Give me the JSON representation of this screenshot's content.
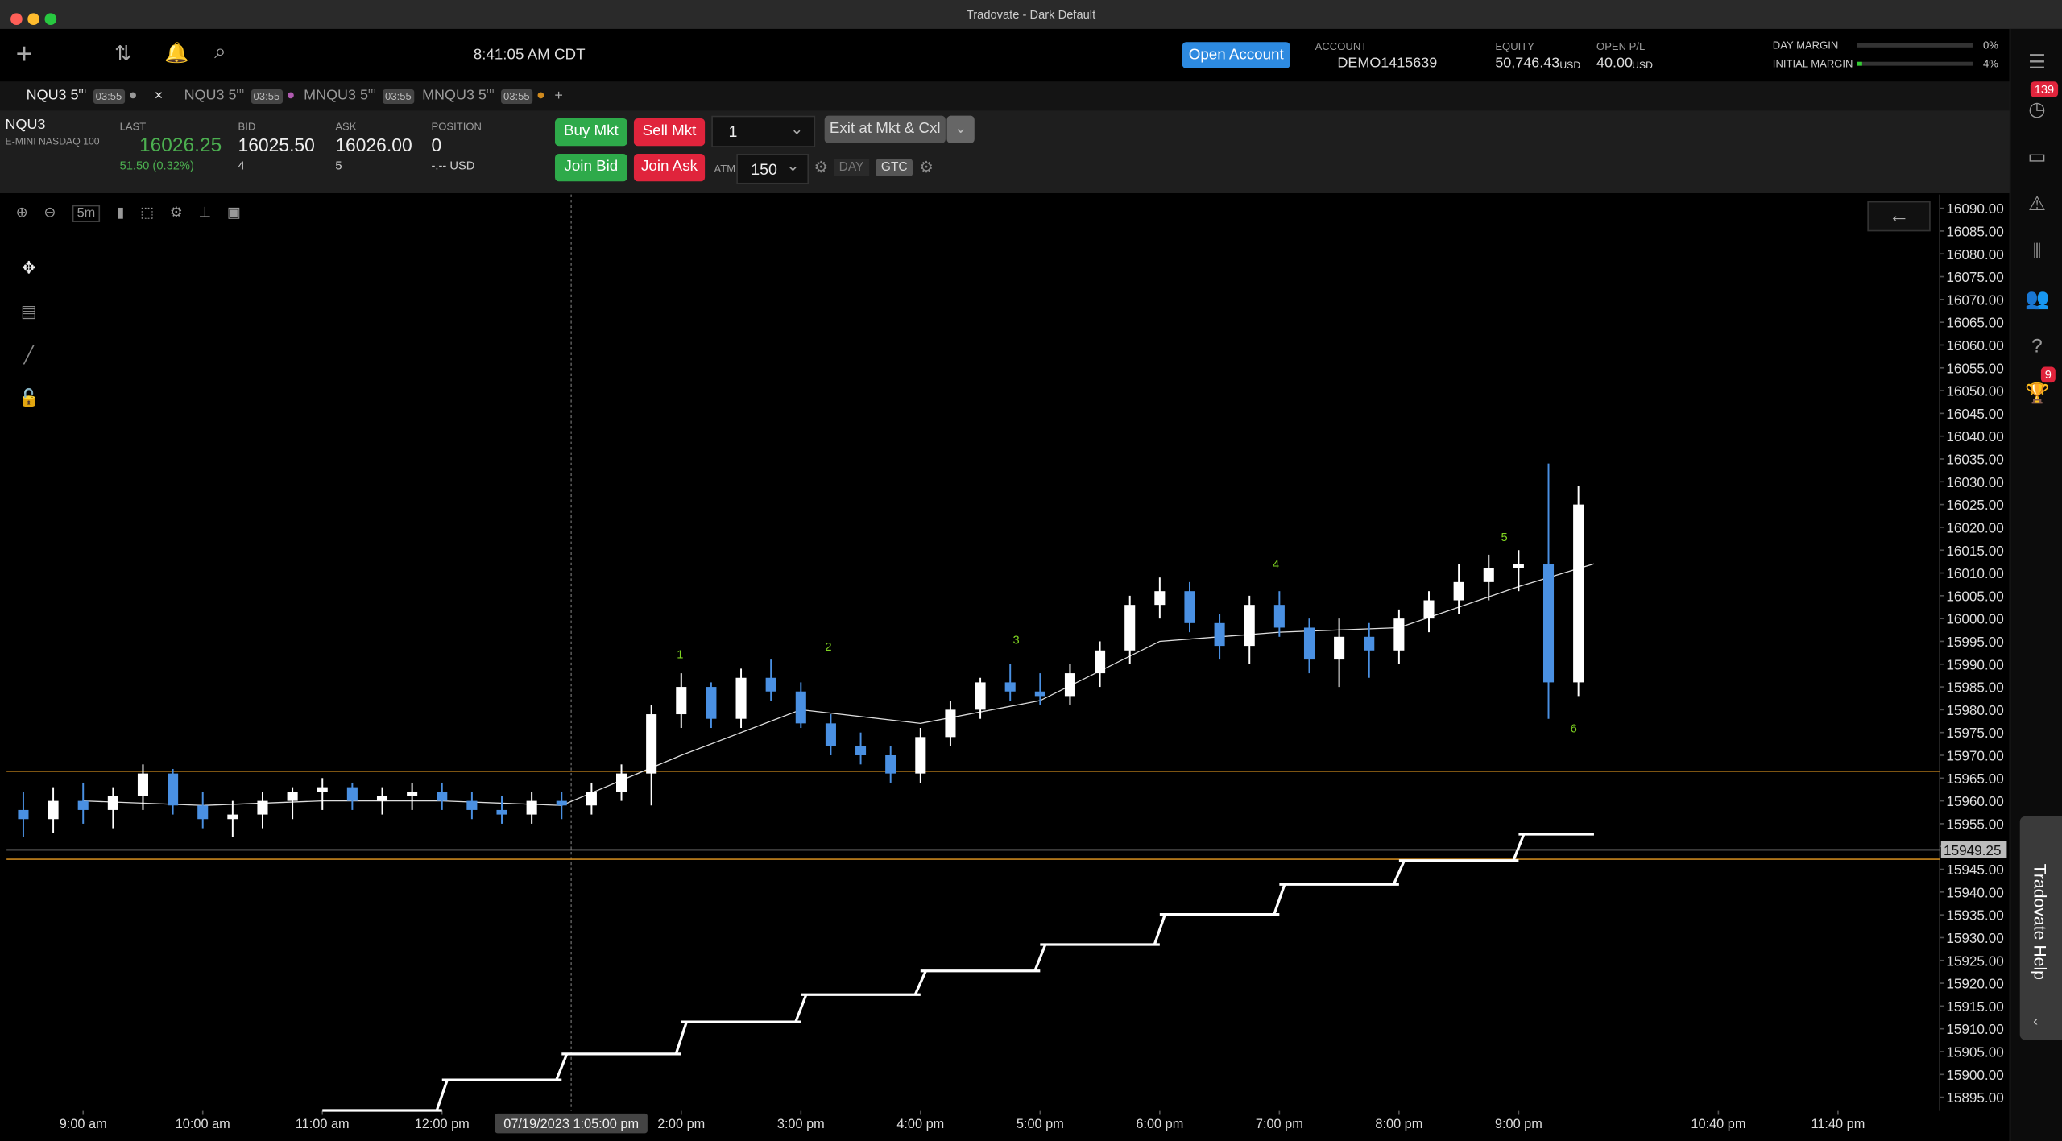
{
  "window": {
    "title": "Tradovate - Dark Default"
  },
  "toolbar": {
    "clock": "8:41:05 AM CDT",
    "open_account": "Open Account",
    "account_label": "ACCOUNT",
    "account": "DEMO1415639",
    "equity_label": "EQUITY",
    "equity": "50,746.43",
    "equity_unit": "USD",
    "pl_label": "OPEN P/L",
    "pl": "40.00",
    "pl_unit": "USD",
    "day_margin_label": "DAY MARGIN",
    "day_margin": "0%",
    "initial_margin_label": "INITIAL MARGIN",
    "initial_margin": "4%"
  },
  "tabs": [
    {
      "name": "NQU3 5",
      "sup": "m",
      "timer": "03:55"
    },
    {
      "name": "NQU3 5",
      "sup": "m",
      "timer": "03:55"
    },
    {
      "name": "MNQU3 5",
      "sup": "m",
      "timer": "03:55"
    },
    {
      "name": "MNQU3 5",
      "sup": "m",
      "timer": "03:55"
    }
  ],
  "quote": {
    "symbol": "NQU3",
    "description": "E-MINI NASDAQ 100",
    "last_label": "LAST",
    "last": "16026.25",
    "change": "51.50 (0.32%)",
    "bid_label": "BID",
    "bid": "16025.50",
    "bid_size": "4",
    "ask_label": "ASK",
    "ask": "16026.00",
    "ask_size": "5",
    "position_label": "POSITION",
    "position": "0",
    "position_pl": "-.-- USD"
  },
  "order": {
    "buy": "Buy Mkt",
    "sell": "Sell Mkt",
    "qty": "1",
    "join_bid": "Join Bid",
    "join_ask": "Join Ask",
    "atm_label": "ATM",
    "atm": "150",
    "day": "DAY",
    "gtc": "GTC",
    "exit": "Exit at Mkt & Cxl"
  },
  "chart_toolbar": {
    "interval": "5m"
  },
  "sidebar": {
    "badge_top": "139",
    "badge_trophy": "9",
    "help": "Tradovate Help"
  },
  "chart": {
    "type": "candlestick",
    "ylim": [
      15892,
      16093
    ],
    "xlim": [
      8.36,
      24.52
    ],
    "up_color": "#ffffff",
    "down_color": "#4a90e2",
    "yticks": [
      {
        "value": 15895,
        "label": "15895.00"
      },
      {
        "value": 15900,
        "label": "15900.00"
      },
      {
        "value": 15905,
        "label": "15905.00"
      },
      {
        "value": 15910,
        "label": "15910.00"
      },
      {
        "value": 15915,
        "label": "15915.00"
      },
      {
        "value": 15920,
        "label": "15920.00"
      },
      {
        "value": 15925,
        "label": "15925.00"
      },
      {
        "value": 15930,
        "label": "15930.00"
      },
      {
        "value": 15935,
        "label": "15935.00"
      },
      {
        "value": 15940,
        "label": "15940.00"
      },
      {
        "value": 15945,
        "label": "15945.00"
      },
      {
        "value": 15950,
        "label": "15950.00"
      },
      {
        "value": 15955,
        "label": "15955.00"
      },
      {
        "value": 15960,
        "label": "15960.00"
      },
      {
        "value": 15965,
        "label": "15965.00"
      },
      {
        "value": 15970,
        "label": "15970.00"
      },
      {
        "value": 15975,
        "label": "15975.00"
      },
      {
        "value": 15980,
        "label": "15980.00"
      },
      {
        "value": 15985,
        "label": "15985.00"
      },
      {
        "value": 15990,
        "label": "15990.00"
      },
      {
        "value": 15995,
        "label": "15995.00"
      },
      {
        "value": 16000,
        "label": "16000.00"
      },
      {
        "value": 16005,
        "label": "16005.00"
      },
      {
        "value": 16010,
        "label": "16010.00"
      },
      {
        "value": 16015,
        "label": "16015.00"
      },
      {
        "value": 16020,
        "label": "16020.00"
      },
      {
        "value": 16025,
        "label": "16025.00"
      },
      {
        "value": 16030,
        "label": "16030.00"
      },
      {
        "value": 16035,
        "label": "16035.00"
      },
      {
        "value": 16040,
        "label": "16040.00"
      },
      {
        "value": 16045,
        "label": "16045.00"
      },
      {
        "value": 16050,
        "label": "16050.00"
      },
      {
        "value": 16055,
        "label": "16055.00"
      },
      {
        "value": 16060,
        "label": "16060.00"
      },
      {
        "value": 16065,
        "label": "16065.00"
      },
      {
        "value": 16070,
        "label": "16070.00"
      },
      {
        "value": 16075,
        "label": "16075.00"
      },
      {
        "value": 16080,
        "label": "16080.00"
      },
      {
        "value": 16085,
        "label": "16085.00"
      },
      {
        "value": 16090,
        "label": "16090.00"
      }
    ],
    "xticks": [
      {
        "value": 9,
        "label": "9:00 am"
      },
      {
        "value": 10,
        "label": "10:00 am"
      },
      {
        "value": 11,
        "label": "11:00 am"
      },
      {
        "value": 12,
        "label": "12:00 pm"
      },
      {
        "value": 14,
        "label": "2:00 pm"
      },
      {
        "value": 15,
        "label": "3:00 pm"
      },
      {
        "value": 16,
        "label": "4:00 pm"
      },
      {
        "value": 17,
        "label": "5:00 pm"
      },
      {
        "value": 18,
        "label": "6:00 pm"
      },
      {
        "value": 19,
        "label": "7:00 pm"
      },
      {
        "value": 20,
        "label": "8:00 pm"
      },
      {
        "value": 21,
        "label": "9:00 pm"
      },
      {
        "value": 22.67,
        "label": "10:40 pm"
      },
      {
        "value": 23.67,
        "label": "11:40 pm"
      }
    ],
    "crosshair": {
      "value": 13.08,
      "label": "07/19/2023 1:05:00 pm"
    },
    "candles": {
      "x": [
        8.5,
        8.75,
        9,
        9.25,
        9.5,
        9.75,
        10,
        10.25,
        10.5,
        10.75,
        11,
        11.25,
        11.5,
        11.75,
        12,
        12.25,
        12.5,
        12.75,
        13,
        13.25,
        13.5,
        13.75,
        14,
        14.25,
        14.5,
        14.75,
        15,
        15.25,
        15.5,
        15.75,
        16,
        16.25,
        16.5,
        16.75,
        17,
        17.25,
        17.5,
        17.75,
        18,
        18.25,
        18.5,
        18.75,
        19,
        19.25,
        19.5,
        19.75,
        20,
        20.25,
        20.5,
        20.75,
        21,
        21.25,
        21.5
      ],
      "open": [
        15958,
        15956,
        15960,
        15958,
        15961,
        15966,
        15959,
        15956,
        15957,
        15960,
        15962,
        15963,
        15960,
        15961,
        15962,
        15960,
        15958,
        15957,
        15960,
        15959,
        15962,
        15966,
        15979,
        15985,
        15978,
        15987,
        15984,
        15977,
        15972,
        15970,
        15966,
        15974,
        15980,
        15986,
        15984,
        15983,
        15988,
        15993,
        16003,
        16006,
        15999,
        15994,
        16003,
        15998,
        15991,
        15996,
        15993,
        16000,
        16004,
        16008,
        16011,
        16012,
        15986
      ],
      "high": [
        15962,
        15963,
        15964,
        15963,
        15968,
        15967,
        15962,
        15960,
        15962,
        15963,
        15965,
        15964,
        15963,
        15964,
        15964,
        15962,
        15961,
        15962,
        15962,
        15964,
        15968,
        15981,
        15988,
        15986,
        15989,
        15991,
        15986,
        15979,
        15975,
        15972,
        15976,
        15982,
        15987,
        15990,
        15988,
        15990,
        15995,
        16005,
        16009,
        16008,
        16001,
        16005,
        16006,
        16000,
        16000,
        15999,
        16002,
        16006,
        16012,
        16014,
        16015,
        16034,
        16029
      ],
      "low": [
        15952,
        15953,
        15955,
        15954,
        15958,
        15957,
        15954,
        15952,
        15954,
        15956,
        15958,
        15958,
        15957,
        15958,
        15958,
        15956,
        15955,
        15955,
        15956,
        15957,
        15960,
        15959,
        15976,
        15976,
        15976,
        15982,
        15976,
        15970,
        15968,
        15964,
        15964,
        15972,
        15978,
        15982,
        15981,
        15981,
        15985,
        15990,
        16000,
        15997,
        15991,
        15990,
        15996,
        15988,
        15985,
        15987,
        15990,
        15997,
        16001,
        16004,
        16006,
        15978,
        15983
      ],
      "close": [
        15956,
        15960,
        15958,
        15961,
        15966,
        15959,
        15956,
        15957,
        15960,
        15962,
        15963,
        15960,
        15961,
        15962,
        15960,
        15958,
        15957,
        15960,
        15959,
        15962,
        15966,
        15979,
        15985,
        15978,
        15987,
        15984,
        15977,
        15972,
        15970,
        15966,
        15974,
        15980,
        15986,
        15984,
        15983,
        15988,
        15993,
        16003,
        16006,
        15999,
        15994,
        16003,
        15998,
        15991,
        15996,
        15993,
        16000,
        16004,
        16008,
        16011,
        16012,
        15986,
        16025
      ]
    },
    "ma": {
      "x": [
        9,
        10,
        11,
        12,
        13,
        14,
        15,
        16,
        17,
        18,
        19,
        20,
        21,
        21.63
      ],
      "values": [
        15960,
        15959,
        15960,
        15960,
        15959,
        15970,
        15980,
        15977,
        15982,
        15995,
        15997,
        15998,
        16007,
        16012
      ]
    },
    "steps": {
      "edges": [
        11,
        12,
        13,
        14,
        15,
        16,
        17,
        18,
        19,
        20,
        21,
        21.63
      ],
      "values": [
        15892.1,
        15898.8,
        15904.5,
        15911.5,
        15917.5,
        15922.7,
        15928.5,
        15935.1,
        15941.7,
        15946.9,
        15952.7
      ]
    },
    "levels": [
      {
        "value": 15966.5,
        "color": "#c8861e"
      },
      {
        "value": 15947.2,
        "color": "#c8861e"
      },
      {
        "value": 15949.25,
        "color": "#9a9a9a"
      }
    ],
    "markers": [
      {
        "label": "1",
        "x": 13.99,
        "y": 15991.3
      },
      {
        "label": "2",
        "x": 15.23,
        "y": 15993
      },
      {
        "label": "3",
        "x": 16.8,
        "y": 15994.5
      },
      {
        "label": "4",
        "x": 18.97,
        "y": 16011
      },
      {
        "label": "5",
        "x": 20.88,
        "y": 16017
      },
      {
        "label": "6",
        "x": 21.46,
        "y": 15975
      }
    ]
  }
}
